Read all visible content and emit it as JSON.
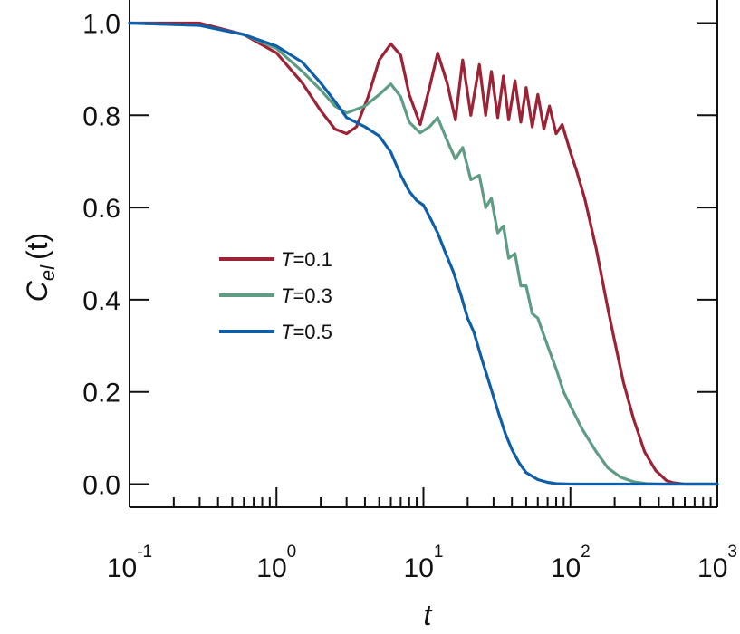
{
  "chart_data": {
    "type": "line",
    "title": "",
    "xlabel": "t",
    "ylabel_main": "C",
    "ylabel_sub": "el",
    "ylabel_arg": "(t)",
    "xscale": "log",
    "xlim": [
      0.1,
      1000
    ],
    "ylim": [
      -0.05,
      1.05
    ],
    "x_tick_labels": [
      {
        "value": 0.1,
        "base": "10",
        "exp": "-1"
      },
      {
        "value": 1,
        "base": "10",
        "exp": "0"
      },
      {
        "value": 10,
        "base": "10",
        "exp": "1"
      },
      {
        "value": 100,
        "base": "10",
        "exp": "2"
      },
      {
        "value": 1000,
        "base": "10",
        "exp": "3"
      }
    ],
    "y_ticks": [
      0.0,
      0.2,
      0.4,
      0.6,
      0.8,
      1.0
    ],
    "y_tick_labels": [
      "0.0",
      "0.2",
      "0.4",
      "0.6",
      "0.8",
      "1.0"
    ],
    "grid": false,
    "legend_position": "center-left",
    "series": [
      {
        "name_var": "T",
        "name_val": "=0.1",
        "color": "#9b2335",
        "x": [
          0.1,
          0.3,
          0.6,
          1.0,
          1.5,
          2.0,
          2.5,
          3.0,
          3.5,
          4.2,
          5.0,
          6.0,
          7.0,
          8.0,
          9.5,
          11.0,
          12.5,
          14.5,
          16.5,
          18.5,
          21.0,
          24.0,
          26.5,
          29.0,
          32.0,
          35.0,
          38.0,
          42.0,
          46.0,
          50.0,
          55.0,
          60.0,
          66.0,
          72.0,
          80.0,
          88.0,
          100.0,
          110.0,
          125.0,
          150.0,
          180.0,
          200.0,
          230.0,
          270.0,
          320.0,
          380.0,
          450.0,
          500.0,
          600.0,
          700.0,
          1000.0
        ],
        "y": [
          1.0,
          1.0,
          0.975,
          0.935,
          0.87,
          0.81,
          0.77,
          0.76,
          0.775,
          0.84,
          0.92,
          0.955,
          0.93,
          0.845,
          0.78,
          0.86,
          0.935,
          0.87,
          0.79,
          0.92,
          0.8,
          0.91,
          0.8,
          0.895,
          0.795,
          0.885,
          0.79,
          0.875,
          0.785,
          0.86,
          0.775,
          0.845,
          0.77,
          0.82,
          0.76,
          0.78,
          0.72,
          0.68,
          0.62,
          0.51,
          0.38,
          0.31,
          0.22,
          0.14,
          0.07,
          0.03,
          0.008,
          0.003,
          0.0,
          0.0,
          0.0
        ]
      },
      {
        "name_var": "T",
        "name_val": "=0.3",
        "color": "#5f9c84",
        "x": [
          0.1,
          0.3,
          0.6,
          1.0,
          1.5,
          2.0,
          2.5,
          3.0,
          4.0,
          5.0,
          6.0,
          7.0,
          8.0,
          9.5,
          11.0,
          12.5,
          14.5,
          16.5,
          18.5,
          21.0,
          24.0,
          26.5,
          29.0,
          32.0,
          35.0,
          38.0,
          42.0,
          46.0,
          50.0,
          55.0,
          60.0,
          70.0,
          80.0,
          90.0,
          100.0,
          120.0,
          150.0,
          180.0,
          220.0,
          270.0,
          330.0,
          400.0,
          500.0,
          1000.0
        ],
        "y": [
          1.0,
          0.995,
          0.975,
          0.945,
          0.895,
          0.855,
          0.82,
          0.805,
          0.82,
          0.845,
          0.868,
          0.84,
          0.785,
          0.762,
          0.775,
          0.795,
          0.745,
          0.705,
          0.73,
          0.66,
          0.67,
          0.6,
          0.62,
          0.545,
          0.56,
          0.49,
          0.5,
          0.43,
          0.43,
          0.37,
          0.36,
          0.3,
          0.25,
          0.2,
          0.17,
          0.12,
          0.07,
          0.035,
          0.015,
          0.005,
          0.001,
          0.0,
          0.0,
          0.0
        ]
      },
      {
        "name_var": "T",
        "name_val": "=0.5",
        "color": "#0e5fa8",
        "x": [
          0.1,
          0.3,
          0.6,
          1.0,
          1.5,
          2.0,
          2.5,
          3.0,
          4.0,
          5.0,
          6.0,
          7.0,
          8.0,
          9.0,
          10.0,
          11.0,
          12.5,
          14.0,
          16.0,
          18.0,
          20.0,
          22.0,
          25.0,
          28.0,
          32.0,
          36.0,
          40.0,
          45.0,
          50.0,
          60.0,
          70.0,
          80.0,
          100.0,
          150.0,
          1000.0
        ],
        "y": [
          1.0,
          0.995,
          0.975,
          0.95,
          0.915,
          0.87,
          0.83,
          0.795,
          0.775,
          0.755,
          0.72,
          0.67,
          0.635,
          0.615,
          0.605,
          0.58,
          0.545,
          0.505,
          0.46,
          0.41,
          0.36,
          0.33,
          0.27,
          0.22,
          0.16,
          0.11,
          0.075,
          0.045,
          0.025,
          0.01,
          0.004,
          0.001,
          0.0,
          0.0,
          0.0
        ]
      }
    ]
  }
}
